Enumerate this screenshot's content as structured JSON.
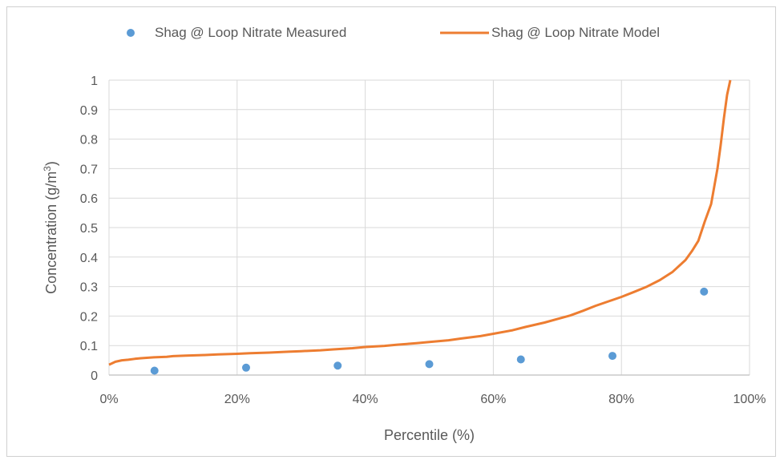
{
  "chart_data": {
    "type": "scatter",
    "title": "",
    "xlabel": "Percentile (%)",
    "ylabel": "Concentration (g/m",
    "ylabel_sup": "3",
    "ylabel_end": ")",
    "xlim": [
      0,
      100
    ],
    "ylim": [
      0,
      1
    ],
    "x_ticks": [
      {
        "value": 0,
        "label": "0%"
      },
      {
        "value": 20,
        "label": "20%"
      },
      {
        "value": 40,
        "label": "40%"
      },
      {
        "value": 60,
        "label": "60%"
      },
      {
        "value": 80,
        "label": "80%"
      },
      {
        "value": 100,
        "label": "100%"
      }
    ],
    "y_ticks": [
      {
        "value": 0,
        "label": "0"
      },
      {
        "value": 0.1,
        "label": "0.1"
      },
      {
        "value": 0.2,
        "label": "0.2"
      },
      {
        "value": 0.3,
        "label": "0.3"
      },
      {
        "value": 0.4,
        "label": "0.4"
      },
      {
        "value": 0.5,
        "label": "0.5"
      },
      {
        "value": 0.6,
        "label": "0.6"
      },
      {
        "value": 0.7,
        "label": "0.7"
      },
      {
        "value": 0.8,
        "label": "0.8"
      },
      {
        "value": 0.9,
        "label": "0.9"
      },
      {
        "value": 1,
        "label": "1"
      }
    ],
    "grid": true,
    "legend_position": "top",
    "series": [
      {
        "name": "Shag @ Loop Nitrate Measured",
        "kind": "scatter",
        "color": "#5b9bd5",
        "x": [
          7.1,
          21.4,
          35.7,
          50.0,
          64.3,
          78.6,
          92.9
        ],
        "y": [
          0.015,
          0.025,
          0.032,
          0.037,
          0.053,
          0.065,
          0.283
        ]
      },
      {
        "name": "Shag @ Loop Nitrate Model",
        "kind": "line",
        "color": "#ed7d31",
        "x": [
          0,
          1,
          2,
          3,
          4,
          5,
          7,
          9,
          10,
          12,
          14,
          15,
          17,
          20,
          22,
          25,
          28,
          30,
          33,
          35,
          38,
          40,
          43,
          45,
          48,
          50,
          53,
          55,
          58,
          60,
          63,
          65,
          68,
          70,
          72,
          74,
          76,
          78,
          80,
          82,
          84,
          86,
          88,
          90,
          91,
          92,
          93,
          94,
          95,
          95.5,
          96,
          96.5,
          97
        ],
        "y": [
          0.035,
          0.045,
          0.05,
          0.052,
          0.055,
          0.057,
          0.06,
          0.062,
          0.064,
          0.066,
          0.067,
          0.068,
          0.07,
          0.072,
          0.074,
          0.076,
          0.079,
          0.081,
          0.084,
          0.087,
          0.091,
          0.095,
          0.099,
          0.103,
          0.108,
          0.112,
          0.118,
          0.124,
          0.132,
          0.14,
          0.152,
          0.163,
          0.178,
          0.19,
          0.202,
          0.218,
          0.235,
          0.25,
          0.265,
          0.282,
          0.3,
          0.322,
          0.35,
          0.39,
          0.42,
          0.455,
          0.52,
          0.58,
          0.7,
          0.78,
          0.87,
          0.95,
          1.0
        ]
      }
    ]
  }
}
